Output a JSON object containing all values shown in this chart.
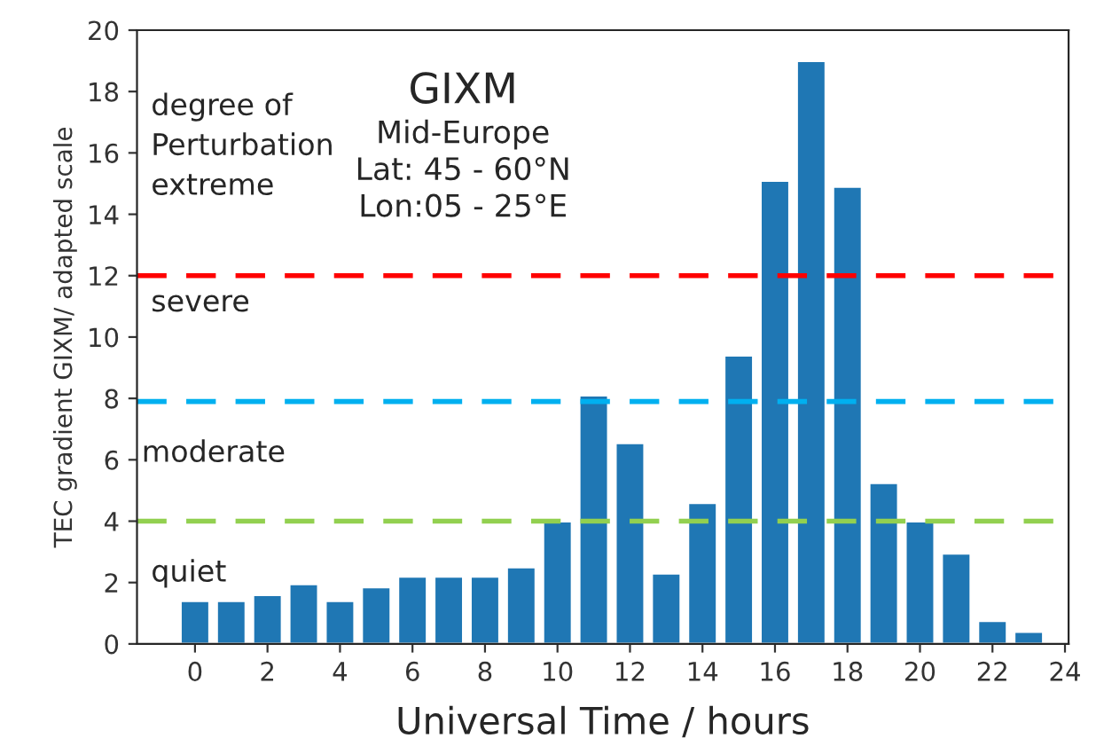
{
  "chart_data": {
    "type": "bar",
    "title": "GIXM",
    "subtitle": "Mid-Europe\nLat: 45 - 60°N\nLon:05 - 25°E",
    "xlabel": "Universal Time / hours",
    "ylabel": "TEC gradient GIXM/ adapted scale",
    "x": [
      0,
      1,
      2,
      3,
      4,
      5,
      6,
      7,
      8,
      9,
      10,
      11,
      12,
      13,
      14,
      15,
      16,
      17,
      18,
      19,
      20,
      21,
      22,
      23
    ],
    "values": [
      1.4,
      1.4,
      1.6,
      1.95,
      1.4,
      1.85,
      2.2,
      2.2,
      2.2,
      2.5,
      4.0,
      8.1,
      6.55,
      2.3,
      4.6,
      9.4,
      15.1,
      19.0,
      14.9,
      5.25,
      4.0,
      2.95,
      0.75,
      0.4
    ],
    "color": "#1f77b4",
    "xlim": [
      -1.6,
      24.1
    ],
    "xticks": [
      0,
      2,
      4,
      6,
      8,
      10,
      12,
      14,
      16,
      18,
      20,
      22,
      24
    ],
    "ylim": [
      0,
      20
    ],
    "yticks": [
      0,
      2,
      4,
      6,
      8,
      10,
      12,
      14,
      16,
      18,
      20
    ],
    "ref_lines": [
      {
        "axis": "y",
        "value": 12,
        "color": "#ff0000",
        "line_style": "dashed"
      },
      {
        "axis": "y",
        "value": 7.9,
        "color": "#00b0f0",
        "line_style": "dashed"
      },
      {
        "axis": "y",
        "value": 4,
        "color": "#92d050",
        "line_style": "dashed"
      }
    ],
    "annotations": [
      "degree of\nPerturbation\nextreme",
      "severe",
      "moderate",
      "quiet"
    ],
    "grid": false,
    "legend": false
  }
}
